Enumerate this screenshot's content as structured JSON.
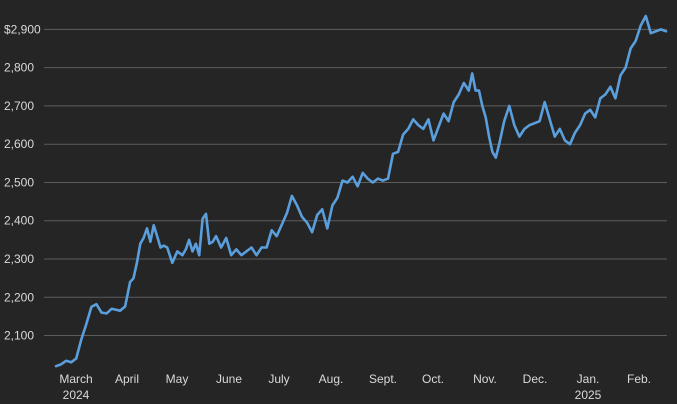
{
  "chart_data": {
    "type": "line",
    "title": "",
    "xlabel": "",
    "ylabel": "",
    "ylim": [
      2010,
      2935
    ],
    "grid": true,
    "legend": "none",
    "y_ticks": [
      {
        "value": 2100,
        "label": "2,100"
      },
      {
        "value": 2200,
        "label": "2,200"
      },
      {
        "value": 2300,
        "label": "2,300"
      },
      {
        "value": 2400,
        "label": "2,400"
      },
      {
        "value": 2500,
        "label": "2,500"
      },
      {
        "value": 2600,
        "label": "2,600"
      },
      {
        "value": 2700,
        "label": "2,700"
      },
      {
        "value": 2800,
        "label": "2,800"
      },
      {
        "value": 2900,
        "label": "$2,900"
      }
    ],
    "x_ticks": [
      {
        "label": "March",
        "sublabel": "2024"
      },
      {
        "label": "April",
        "sublabel": ""
      },
      {
        "label": "May",
        "sublabel": ""
      },
      {
        "label": "June",
        "sublabel": ""
      },
      {
        "label": "July",
        "sublabel": ""
      },
      {
        "label": "Aug.",
        "sublabel": ""
      },
      {
        "label": "Sept.",
        "sublabel": ""
      },
      {
        "label": "Oct.",
        "sublabel": ""
      },
      {
        "label": "Nov.",
        "sublabel": ""
      },
      {
        "label": "Dec.",
        "sublabel": ""
      },
      {
        "label": "Jan.",
        "sublabel": "2025"
      },
      {
        "label": "Feb.",
        "sublabel": ""
      }
    ],
    "colors": {
      "background": "#252526",
      "line": "#5a9fdc",
      "grid": "#5d5d5d",
      "text": "#d9d9d9"
    },
    "series": [
      {
        "name": "",
        "x": [
          "2024-02-27",
          "2024-03-01",
          "2024-03-04",
          "2024-03-07",
          "2024-03-10",
          "2024-03-13",
          "2024-03-16",
          "2024-03-19",
          "2024-03-22",
          "2024-03-25",
          "2024-03-28",
          "2024-03-31",
          "2024-04-02",
          "2024-04-05",
          "2024-04-08",
          "2024-04-11",
          "2024-04-13",
          "2024-04-15",
          "2024-04-17",
          "2024-04-19",
          "2024-04-21",
          "2024-04-23",
          "2024-04-25",
          "2024-04-27",
          "2024-04-29",
          "2024-05-01",
          "2024-05-03",
          "2024-05-06",
          "2024-05-09",
          "2024-05-12",
          "2024-05-14",
          "2024-05-16",
          "2024-05-18",
          "2024-05-20",
          "2024-05-22",
          "2024-05-24",
          "2024-05-26",
          "2024-05-28",
          "2024-05-30",
          "2024-06-01",
          "2024-06-04",
          "2024-06-07",
          "2024-06-10",
          "2024-06-13",
          "2024-06-16",
          "2024-06-19",
          "2024-06-22",
          "2024-06-25",
          "2024-06-28",
          "2024-07-01",
          "2024-07-04",
          "2024-07-07",
          "2024-07-10",
          "2024-07-13",
          "2024-07-16",
          "2024-07-19",
          "2024-07-22",
          "2024-07-25",
          "2024-07-28",
          "2024-07-31",
          "2024-08-03",
          "2024-08-06",
          "2024-08-09",
          "2024-08-12",
          "2024-08-15",
          "2024-08-18",
          "2024-08-21",
          "2024-08-24",
          "2024-08-27",
          "2024-08-30",
          "2024-09-02",
          "2024-09-05",
          "2024-09-08",
          "2024-09-11",
          "2024-09-14",
          "2024-09-17",
          "2024-09-20",
          "2024-09-23",
          "2024-09-26",
          "2024-09-29",
          "2024-10-02",
          "2024-10-05",
          "2024-10-08",
          "2024-10-11",
          "2024-10-14",
          "2024-10-17",
          "2024-10-20",
          "2024-10-23",
          "2024-10-26",
          "2024-10-29",
          "2024-10-31",
          "2024-11-02",
          "2024-11-04",
          "2024-11-06",
          "2024-11-08",
          "2024-11-10",
          "2024-11-12",
          "2024-11-14",
          "2024-11-16",
          "2024-11-19",
          "2024-11-22",
          "2024-11-25",
          "2024-11-28",
          "2024-12-01",
          "2024-12-04",
          "2024-12-07",
          "2024-12-10",
          "2024-12-13",
          "2024-12-16",
          "2024-12-19",
          "2024-12-22",
          "2024-12-25",
          "2024-12-28",
          "2024-12-31",
          "2025-01-03",
          "2025-01-06",
          "2025-01-09",
          "2025-01-12",
          "2025-01-15",
          "2025-01-18",
          "2025-01-21",
          "2025-01-24",
          "2025-01-27",
          "2025-01-30",
          "2025-02-02",
          "2025-02-05",
          "2025-02-08",
          "2025-02-11",
          "2025-02-14",
          "2025-02-17",
          "2025-02-20",
          "2025-02-23"
        ],
        "values": [
          2020,
          2025,
          2034,
          2030,
          2040,
          2090,
          2130,
          2175,
          2182,
          2160,
          2158,
          2170,
          2168,
          2165,
          2176,
          2240,
          2250,
          2290,
          2340,
          2355,
          2380,
          2345,
          2388,
          2360,
          2330,
          2335,
          2330,
          2290,
          2320,
          2310,
          2325,
          2350,
          2320,
          2340,
          2310,
          2405,
          2418,
          2340,
          2345,
          2360,
          2330,
          2355,
          2310,
          2325,
          2310,
          2320,
          2330,
          2310,
          2330,
          2330,
          2375,
          2360,
          2390,
          2420,
          2465,
          2440,
          2410,
          2395,
          2370,
          2415,
          2430,
          2380,
          2440,
          2460,
          2505,
          2500,
          2515,
          2490,
          2525,
          2510,
          2500,
          2510,
          2505,
          2510,
          2575,
          2580,
          2625,
          2640,
          2665,
          2650,
          2640,
          2665,
          2610,
          2645,
          2680,
          2660,
          2710,
          2730,
          2760,
          2740,
          2785,
          2740,
          2740,
          2700,
          2670,
          2620,
          2580,
          2565,
          2600,
          2660,
          2700,
          2650,
          2620,
          2640,
          2650,
          2655,
          2660,
          2710,
          2665,
          2620,
          2640,
          2610,
          2600,
          2630,
          2650,
          2680,
          2690,
          2670,
          2720,
          2730,
          2750,
          2720,
          2780,
          2800,
          2850,
          2870,
          2910,
          2935,
          2890,
          2895,
          2900,
          2895
        ]
      }
    ]
  }
}
